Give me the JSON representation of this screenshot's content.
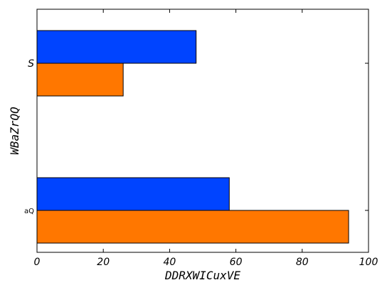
{
  "chart_data": {
    "type": "bar",
    "orientation": "horizontal",
    "xlabel": "DDRXWICuxVE",
    "ylabel": "WBaZrQQ",
    "xlim": [
      0,
      100
    ],
    "xticks": [
      "0",
      "20",
      "40",
      "60",
      "80",
      "100"
    ],
    "categories": [
      "aQ",
      "S"
    ],
    "series": [
      {
        "color": "#0044ff",
        "values": [
          58,
          48
        ]
      },
      {
        "color": "#ff7700",
        "values": [
          94,
          26
        ]
      }
    ],
    "grid": false,
    "legend": "none"
  }
}
